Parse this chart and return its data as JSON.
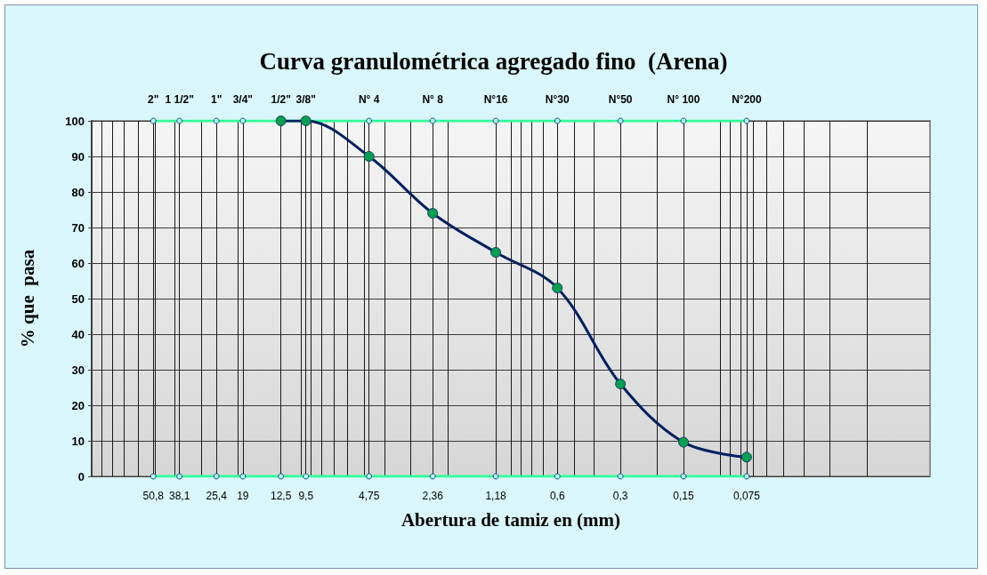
{
  "chart_data": {
    "type": "line",
    "title": "Curva granulométrica agregado fino  (Arena)",
    "xlabel": "Abertura de tamiz en (mm)",
    "ylabel": "% que  pasa",
    "log": "x",
    "grid": true,
    "marker": "circle",
    "xlim": [
      100,
      0.01
    ],
    "ylim": [
      0,
      100
    ],
    "yticks": [
      0,
      10,
      20,
      30,
      40,
      50,
      60,
      70,
      80,
      90,
      100
    ],
    "xticks": [
      {
        "value": 50.8,
        "label": "50,8"
      },
      {
        "value": 38.1,
        "label": "38,1"
      },
      {
        "value": 25.4,
        "label": "25,4"
      },
      {
        "value": 19,
        "label": "19"
      },
      {
        "value": 12.5,
        "label": "12,5"
      },
      {
        "value": 9.5,
        "label": "9,5"
      },
      {
        "value": 4.75,
        "label": "4,75"
      },
      {
        "value": 2.36,
        "label": "2,36"
      },
      {
        "value": 1.18,
        "label": "1,18"
      },
      {
        "value": 0.6,
        "label": "0,6"
      },
      {
        "value": 0.3,
        "label": "0,3"
      },
      {
        "value": 0.15,
        "label": "0,15"
      },
      {
        "value": 0.075,
        "label": "0,075"
      }
    ],
    "annotations": [
      {
        "text": "2\"",
        "x": 50.8,
        "y": 100
      },
      {
        "text": "1 1/2\"",
        "x": 38.1,
        "y": 100
      },
      {
        "text": "1\"",
        "x": 25.4,
        "y": 100
      },
      {
        "text": "3/4\"",
        "x": 19,
        "y": 100
      },
      {
        "text": "1/2\"",
        "x": 12.5,
        "y": 100
      },
      {
        "text": "3/8\"",
        "x": 9.5,
        "y": 100
      },
      {
        "text": "N° 4",
        "x": 4.75,
        "y": 100
      },
      {
        "text": "N° 8",
        "x": 2.36,
        "y": 100
      },
      {
        "text": "N°16",
        "x": 1.18,
        "y": 100
      },
      {
        "text": "N°30",
        "x": 0.6,
        "y": 100
      },
      {
        "text": "N°50",
        "x": 0.3,
        "y": 100
      },
      {
        "text": "N° 100",
        "x": 0.15,
        "y": 100
      },
      {
        "text": "N°200",
        "x": 0.075,
        "y": 100
      }
    ],
    "series": [
      {
        "color": "#33ff99",
        "x": [
          50.8,
          38.1,
          25.4,
          19,
          12.5,
          9.5,
          4.75,
          2.36,
          1.18,
          0.6,
          0.3,
          0.15,
          0.075
        ],
        "values": [
          100,
          100,
          100,
          100,
          100,
          100,
          100,
          100,
          100,
          100,
          100,
          100,
          100
        ]
      },
      {
        "color": "#33ff99",
        "x": [
          50.8,
          38.1,
          25.4,
          19,
          12.5,
          9.5,
          4.75,
          2.36,
          1.18,
          0.6,
          0.3,
          0.15,
          0.075
        ],
        "values": [
          0,
          0,
          0,
          0,
          0,
          0,
          0,
          0,
          0,
          0,
          0,
          0,
          0
        ]
      },
      {
        "color": "#002060",
        "x": [
          12.5,
          9.5,
          4.75,
          2.36,
          1.18,
          0.6,
          0.3,
          0.15,
          0.075
        ],
        "values": [
          100,
          100,
          90,
          74,
          63,
          53,
          26,
          9.6,
          5.4
        ]
      }
    ]
  }
}
